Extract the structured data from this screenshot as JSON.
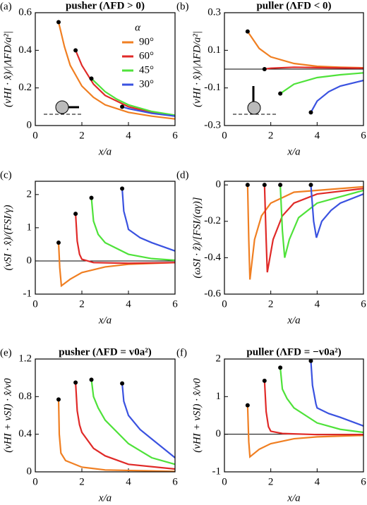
{
  "chart_data": [
    {
      "type": "line",
      "panel_label": "(a)",
      "title": "pusher (ΛFD > 0)",
      "x_label": "x/a",
      "y_label": "(vHI · x̂)/|ΛFD/a²|",
      "xlim": [
        0,
        6
      ],
      "xticks": [
        0,
        2,
        4,
        6
      ],
      "ylim": [
        0,
        0.6
      ],
      "yticks": [
        0,
        0.2,
        0.4,
        0.6
      ],
      "zero_line": false,
      "start_markers": true,
      "legend": "upper right",
      "legend_title": "α",
      "series": [
        {
          "name": "90°",
          "color": "#f07f22",
          "x": [
            1,
            1.25,
            1.5,
            2,
            2.5,
            3,
            4,
            5,
            6
          ],
          "values": [
            0.55,
            0.42,
            0.32,
            0.21,
            0.15,
            0.11,
            0.07,
            0.05,
            0.035
          ]
        },
        {
          "name": "60°",
          "color": "#e02a28",
          "x": [
            1.73,
            2,
            2.5,
            3,
            4,
            5,
            6
          ],
          "values": [
            0.4,
            0.32,
            0.22,
            0.16,
            0.1,
            0.07,
            0.05
          ]
        },
        {
          "name": "45°",
          "color": "#4fe23a",
          "x": [
            2.41,
            3,
            3.5,
            4,
            5,
            6
          ],
          "values": [
            0.25,
            0.18,
            0.14,
            0.11,
            0.075,
            0.055
          ]
        },
        {
          "name": "30°",
          "color": "#3a52e0",
          "x": [
            3.73,
            4,
            5,
            6
          ],
          "values": [
            0.1,
            0.09,
            0.065,
            0.05
          ]
        }
      ]
    },
    {
      "type": "line",
      "panel_label": "(b)",
      "title": "puller (ΛFD < 0)",
      "x_label": "x/a",
      "y_label": "(vHI · x̂)/|ΛFD/a²|",
      "xlim": [
        0,
        6
      ],
      "xticks": [
        0,
        2,
        4,
        6
      ],
      "ylim": [
        -0.3,
        0.3
      ],
      "yticks": [
        -0.3,
        -0.1,
        0.1,
        0.3
      ],
      "zero_line": true,
      "start_markers": true,
      "series": [
        {
          "color": "#f07f22",
          "x": [
            1,
            1.5,
            2,
            3,
            4,
            5,
            6
          ],
          "values": [
            0.2,
            0.11,
            0.065,
            0.03,
            0.015,
            0.01,
            0.007
          ]
        },
        {
          "color": "#e02a28",
          "x": [
            1.73,
            2,
            3,
            4,
            6
          ],
          "values": [
            0,
            0.005,
            0.01,
            0.008,
            0.005
          ]
        },
        {
          "color": "#4fe23a",
          "x": [
            2.41,
            3,
            4,
            5,
            6
          ],
          "values": [
            -0.13,
            -0.08,
            -0.045,
            -0.03,
            -0.02
          ]
        },
        {
          "color": "#3a52e0",
          "x": [
            3.73,
            4,
            4.5,
            5,
            6
          ],
          "values": [
            -0.23,
            -0.17,
            -0.12,
            -0.09,
            -0.06
          ]
        }
      ]
    },
    {
      "type": "line",
      "panel_label": "(c)",
      "x_label": "x/a",
      "y_label": "(vSI · x̂)/(FSI/γ)",
      "xlim": [
        0,
        6
      ],
      "xticks": [
        0,
        2,
        4,
        6
      ],
      "ylim": [
        -1,
        2.4
      ],
      "yticks": [
        -1,
        0,
        1,
        2
      ],
      "zero_line": true,
      "start_markers": true,
      "series": [
        {
          "color": "#f07f22",
          "x": [
            1,
            1.05,
            1.12,
            1.5,
            2,
            3,
            4,
            6
          ],
          "values": [
            0.55,
            -0.2,
            -0.75,
            -0.55,
            -0.35,
            -0.18,
            -0.1,
            -0.05
          ]
        },
        {
          "color": "#e02a28",
          "x": [
            1.73,
            1.8,
            1.9,
            2,
            2.5,
            4,
            6
          ],
          "values": [
            1.42,
            0.6,
            0.2,
            0.05,
            -0.05,
            -0.07,
            -0.05
          ]
        },
        {
          "color": "#4fe23a",
          "x": [
            2.41,
            2.5,
            2.7,
            3,
            4,
            5,
            6
          ],
          "values": [
            1.9,
            1.2,
            0.8,
            0.55,
            0.2,
            0.07,
            0.02
          ]
        },
        {
          "color": "#3a52e0",
          "x": [
            3.73,
            3.8,
            3.95,
            4,
            4.5,
            5,
            6
          ],
          "values": [
            2.18,
            1.5,
            1.1,
            0.95,
            0.7,
            0.55,
            0.3
          ]
        }
      ]
    },
    {
      "type": "line",
      "panel_label": "(d)",
      "x_label": "x/a",
      "y_label": "(ωSI · ẑ)/[FSI/(aγ)]",
      "xlim": [
        0,
        6
      ],
      "xticks": [
        0,
        2,
        4,
        6
      ],
      "ylim": [
        -0.6,
        0.02
      ],
      "yticks": [
        -0.6,
        -0.4,
        -0.2,
        0
      ],
      "zero_line": false,
      "start_markers": true,
      "series": [
        {
          "color": "#f07f22",
          "x": [
            1,
            1.05,
            1.1,
            1.3,
            1.6,
            2,
            3,
            6
          ],
          "values": [
            0,
            -0.3,
            -0.52,
            -0.3,
            -0.17,
            -0.1,
            -0.04,
            -0.01
          ]
        },
        {
          "color": "#e02a28",
          "x": [
            1.73,
            1.8,
            1.85,
            2.1,
            2.5,
            3,
            4,
            6
          ],
          "values": [
            0,
            -0.3,
            -0.48,
            -0.3,
            -0.17,
            -0.1,
            -0.05,
            -0.02
          ]
        },
        {
          "color": "#4fe23a",
          "x": [
            2.41,
            2.5,
            2.6,
            2.8,
            3.2,
            4,
            6
          ],
          "values": [
            0,
            -0.25,
            -0.4,
            -0.3,
            -0.18,
            -0.1,
            -0.03
          ]
        },
        {
          "color": "#3a52e0",
          "x": [
            3.73,
            3.85,
            3.97,
            4.2,
            4.6,
            5,
            6
          ],
          "values": [
            0,
            -0.2,
            -0.29,
            -0.2,
            -0.14,
            -0.1,
            -0.05
          ]
        }
      ]
    },
    {
      "type": "line",
      "panel_label": "(e)",
      "title": "pusher (ΛFD = v0a²)",
      "x_label": "x/a",
      "y_label": "(vHI + vSI) · x̂/v0",
      "xlim": [
        0,
        6
      ],
      "xticks": [
        0,
        2,
        4,
        6
      ],
      "ylim": [
        0,
        1.2
      ],
      "yticks": [
        0,
        0.4,
        0.8,
        1.2
      ],
      "zero_line": false,
      "start_markers": true,
      "series": [
        {
          "color": "#f07f22",
          "x": [
            1,
            1.03,
            1.1,
            1.3,
            2,
            3,
            6
          ],
          "values": [
            0.77,
            0.4,
            0.2,
            0.12,
            0.05,
            0.02,
            0.005
          ]
        },
        {
          "color": "#e02a28",
          "x": [
            1.73,
            1.8,
            1.9,
            2,
            2.5,
            3,
            4,
            6
          ],
          "values": [
            0.95,
            0.65,
            0.5,
            0.42,
            0.25,
            0.17,
            0.08,
            0.03
          ]
        },
        {
          "color": "#4fe23a",
          "x": [
            2.41,
            2.5,
            2.7,
            3,
            4,
            5,
            6
          ],
          "values": [
            0.98,
            0.8,
            0.68,
            0.55,
            0.3,
            0.15,
            0.08
          ]
        },
        {
          "color": "#3a52e0",
          "x": [
            3.73,
            3.8,
            4,
            4.5,
            5,
            6
          ],
          "values": [
            0.94,
            0.75,
            0.6,
            0.45,
            0.35,
            0.15
          ]
        }
      ]
    },
    {
      "type": "line",
      "panel_label": "(f)",
      "title": "puller (ΛFD = −v0a²)",
      "x_label": "x/a",
      "y_label": "(vHI + vSI) · x̂/v0",
      "xlim": [
        0,
        6
      ],
      "xticks": [
        0,
        2,
        4,
        6
      ],
      "ylim": [
        -1,
        2
      ],
      "yticks": [
        -1,
        0,
        1,
        2
      ],
      "zero_line": true,
      "start_markers": true,
      "series": [
        {
          "color": "#f07f22",
          "x": [
            1,
            1.05,
            1.1,
            1.5,
            2,
            3,
            4,
            6
          ],
          "values": [
            0.77,
            -0.2,
            -0.6,
            -0.4,
            -0.25,
            -0.12,
            -0.07,
            -0.03
          ]
        },
        {
          "color": "#e02a28",
          "x": [
            1.73,
            1.8,
            1.9,
            2,
            2.5,
            4,
            6
          ],
          "values": [
            1.42,
            0.6,
            0.2,
            0.08,
            0.02,
            -0.01,
            -0.01
          ]
        },
        {
          "color": "#4fe23a",
          "x": [
            2.41,
            2.5,
            2.7,
            3,
            4,
            5,
            6
          ],
          "values": [
            1.77,
            1.2,
            0.95,
            0.7,
            0.3,
            0.13,
            0.05
          ]
        },
        {
          "color": "#3a52e0",
          "x": [
            3.73,
            3.8,
            3.95,
            4,
            4.5,
            5,
            6
          ],
          "values": [
            1.95,
            1.3,
            0.8,
            0.7,
            0.55,
            0.45,
            0.22
          ]
        }
      ]
    }
  ]
}
